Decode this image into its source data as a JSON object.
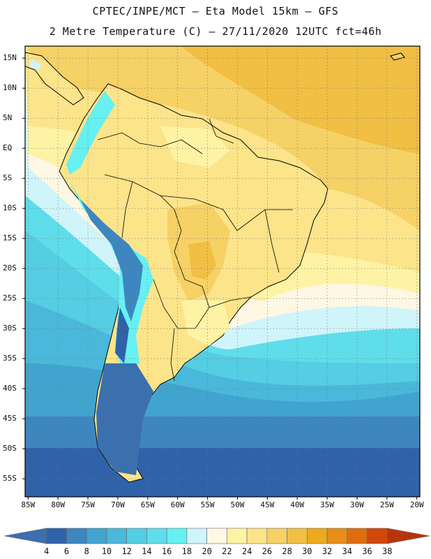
{
  "title": {
    "line1": "CPTEC/INPE/MCT –  Eta Model 15km – GFS",
    "line2": "2 Metre Temperature (C) – 27/11/2020 12UTC fct=46h"
  },
  "map": {
    "lat_labels": [
      "15N",
      "10N",
      "5N",
      "EQ",
      "5S",
      "10S",
      "15S",
      "20S",
      "25S",
      "30S",
      "35S",
      "40S",
      "45S",
      "50S",
      "55S"
    ],
    "lon_labels": [
      "85W",
      "80W",
      "75W",
      "70W",
      "65W",
      "60W",
      "55W",
      "50W",
      "45W",
      "40W",
      "35W",
      "30W",
      "25W",
      "20W"
    ],
    "lon_range": [
      -85.5,
      -19.5
    ],
    "lat_range": [
      -58,
      17
    ]
  },
  "legend": {
    "labels": [
      "4",
      "6",
      "8",
      "10",
      "12",
      "14",
      "16",
      "18",
      "20",
      "22",
      "24",
      "26",
      "28",
      "30",
      "32",
      "34",
      "36",
      "38"
    ],
    "colors": [
      "#3B6FAE",
      "#2F62A8",
      "#3E86C0",
      "#41A4CF",
      "#4AB8DA",
      "#55CDE3",
      "#5FDDEA",
      "#66F0F2",
      "#CFF4FA",
      "#FDF7E3",
      "#FEF3A4",
      "#FCE48A",
      "#F6D166",
      "#F0BF43",
      "#ECAA1C",
      "#E88D16",
      "#E06C10",
      "#D0480A",
      "#B8350A"
    ]
  },
  "palette": {
    "ocean_warm": "#F6D166",
    "ocean_hot": "#F0BF43",
    "land_mild": "#FCE48A",
    "land_warm": "#F6D166",
    "andes_cool": "#66F0F2",
    "andes_cold": "#3E86C0",
    "coast": "#000000"
  }
}
